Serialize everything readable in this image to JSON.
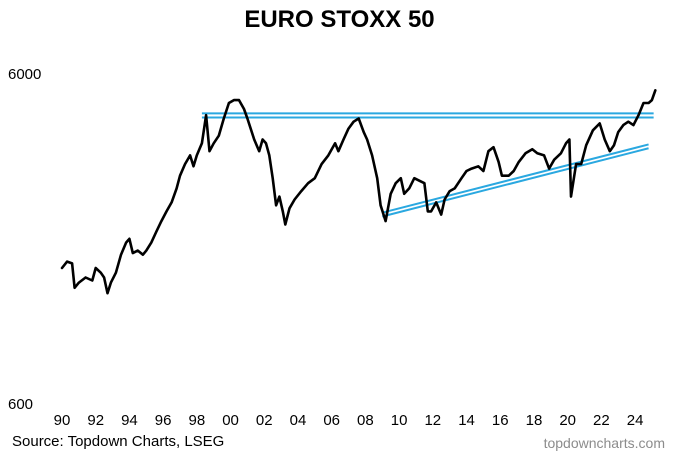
{
  "chart_data": {
    "type": "line",
    "title": "EURO STOXX 50",
    "yscale": "log",
    "ylim": [
      600,
      6000
    ],
    "yticks": [
      600,
      6000
    ],
    "xlim": [
      1990,
      2025.3
    ],
    "xticks": [
      "90",
      "92",
      "94",
      "96",
      "98",
      "00",
      "02",
      "04",
      "06",
      "08",
      "10",
      "12",
      "14",
      "16",
      "18",
      "20",
      "22",
      "24"
    ],
    "grid": false,
    "series": [
      {
        "color": "#000000",
        "x": [
          1990.0,
          1990.3,
          1990.6,
          1990.75,
          1991.0,
          1991.4,
          1991.8,
          1992.0,
          1992.3,
          1992.5,
          1992.7,
          1992.9,
          1993.2,
          1993.5,
          1993.8,
          1994.0,
          1994.2,
          1994.5,
          1994.8,
          1995.0,
          1995.3,
          1995.6,
          1995.9,
          1996.2,
          1996.5,
          1996.8,
          1997.0,
          1997.3,
          1997.6,
          1997.8,
          1998.0,
          1998.3,
          1998.55,
          1998.75,
          1999.0,
          1999.3,
          1999.6,
          1999.9,
          2000.2,
          2000.5,
          2000.8,
          2001.0,
          2001.4,
          2001.7,
          2001.9,
          2002.1,
          2002.3,
          2002.5,
          2002.7,
          2002.9,
          2003.1,
          2003.25,
          2003.5,
          2003.8,
          2004.2,
          2004.6,
          2005.0,
          2005.4,
          2005.8,
          2006.2,
          2006.4,
          2006.7,
          2007.0,
          2007.3,
          2007.6,
          2007.9,
          2008.1,
          2008.4,
          2008.7,
          2008.9,
          2009.2,
          2009.5,
          2009.8,
          2010.1,
          2010.3,
          2010.6,
          2010.9,
          2011.2,
          2011.5,
          2011.7,
          2011.9,
          2012.2,
          2012.5,
          2012.7,
          2013.0,
          2013.3,
          2013.7,
          2014.0,
          2014.3,
          2014.7,
          2015.0,
          2015.3,
          2015.6,
          2015.9,
          2016.1,
          2016.5,
          2016.8,
          2017.1,
          2017.5,
          2017.9,
          2018.2,
          2018.6,
          2018.9,
          2019.2,
          2019.6,
          2019.9,
          2020.1,
          2020.2,
          2020.5,
          2020.8,
          2021.1,
          2021.5,
          2021.9,
          2022.2,
          2022.5,
          2022.75,
          2023.0,
          2023.3,
          2023.6,
          2023.9,
          2024.2,
          2024.5,
          2024.8,
          2025.0,
          2025.2
        ],
        "values": [
          1550,
          1620,
          1600,
          1350,
          1400,
          1450,
          1420,
          1550,
          1500,
          1450,
          1300,
          1400,
          1500,
          1700,
          1850,
          1900,
          1720,
          1750,
          1700,
          1750,
          1850,
          2000,
          2150,
          2300,
          2450,
          2700,
          2950,
          3200,
          3400,
          3150,
          3400,
          3700,
          4500,
          3500,
          3700,
          3900,
          4400,
          4900,
          5000,
          5000,
          4700,
          4400,
          3800,
          3500,
          3800,
          3700,
          3400,
          2900,
          2400,
          2550,
          2300,
          2100,
          2350,
          2500,
          2650,
          2800,
          2900,
          3200,
          3400,
          3700,
          3500,
          3800,
          4100,
          4300,
          4400,
          4000,
          3800,
          3400,
          2900,
          2400,
          2150,
          2600,
          2800,
          2900,
          2600,
          2700,
          2900,
          2850,
          2800,
          2300,
          2300,
          2450,
          2250,
          2500,
          2650,
          2700,
          2900,
          3050,
          3100,
          3150,
          3050,
          3500,
          3600,
          3250,
          2950,
          2950,
          3050,
          3250,
          3450,
          3550,
          3450,
          3400,
          3100,
          3300,
          3450,
          3700,
          3800,
          2550,
          3200,
          3200,
          3650,
          4050,
          4250,
          3800,
          3500,
          3650,
          4000,
          4200,
          4300,
          4200,
          4500,
          4900,
          4900,
          5000,
          5350
        ]
      }
    ],
    "annotations": [
      {
        "type": "horizontal-resistance",
        "color": "#2aa8e0",
        "x_from": 1998.3,
        "x_to": 2025.1,
        "values": [
          4560,
          4430
        ]
      },
      {
        "type": "rising-support",
        "color": "#2aa8e0",
        "x_from": 2009.0,
        "x_to": 2024.8,
        "values": [
          2280,
          3670
        ],
        "offset_value": 2220
      }
    ]
  },
  "footer": {
    "source": "Source: Topdown Charts, LSEG",
    "watermark": "topdowncharts.com"
  }
}
